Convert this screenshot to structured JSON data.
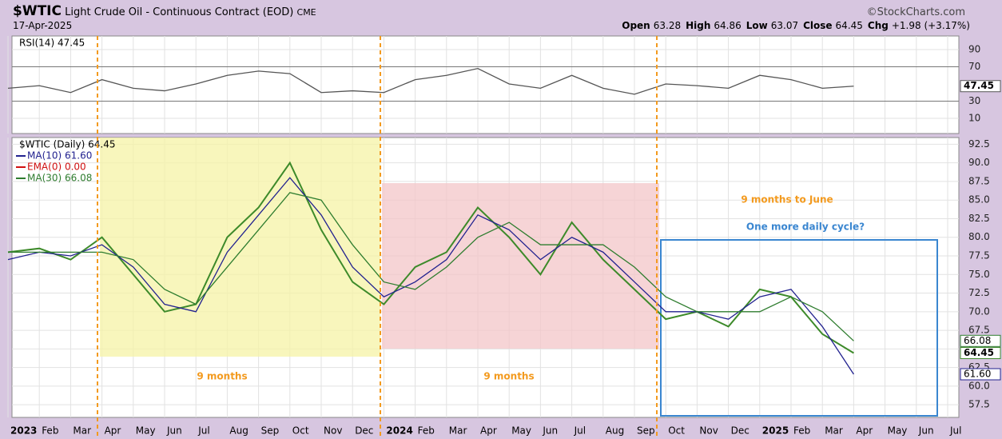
{
  "header": {
    "symbol": "$WTIC",
    "name": "Light Crude Oil - Continuous Contract (EOD)",
    "exchange": "CME",
    "source": "©StockCharts.com",
    "date": "17-Apr-2025",
    "quote": [
      {
        "label": "Open",
        "value": "63.28"
      },
      {
        "label": "High",
        "value": "64.86"
      },
      {
        "label": "Low",
        "value": "63.07"
      },
      {
        "label": "Close",
        "value": "64.45"
      },
      {
        "label": "Chg",
        "value": "+1.98 (+3.17%)"
      }
    ]
  },
  "chart_data": [
    {
      "type": "line",
      "title": "RSI(14) 47.45",
      "ylim": [
        -7.7,
        105.8
      ],
      "yticks": [
        10,
        30,
        70,
        90
      ],
      "grid": true,
      "series": [
        {
          "name": "RSI(14)",
          "color": "#555555",
          "axis_label": "47.45",
          "values": [
            45,
            48,
            40,
            55,
            45,
            42,
            50,
            60,
            65,
            62,
            40,
            42,
            40,
            55,
            60,
            68,
            50,
            45,
            60,
            45,
            38,
            50,
            48,
            45,
            60,
            55,
            45,
            47.45,
            null,
            null,
            null
          ]
        }
      ]
    },
    {
      "type": "line",
      "title": "$WTIC (Daily) 64.45",
      "ylim": [
        55.8,
        93.4
      ],
      "grid": true,
      "categories": [
        "2023",
        "Feb",
        "Mar",
        "Apr",
        "May",
        "Jun",
        "Jul",
        "Aug",
        "Sep",
        "Oct",
        "Nov",
        "Dec",
        "2024",
        "Feb",
        "Mar",
        "Apr",
        "May",
        "Jun",
        "Jul",
        "Aug",
        "Sep",
        "Oct",
        "Nov",
        "Dec",
        "2025",
        "Feb",
        "Mar",
        "Apr",
        "May",
        "Jun",
        "Jul"
      ],
      "yticks": [
        {
          "value": 57.5,
          "label": "57.5"
        },
        {
          "value": 60,
          "label": "60.0"
        },
        {
          "value": 62.5,
          "label": "62.5"
        },
        {
          "value": 65,
          "label": "65.0"
        },
        {
          "value": 67.5,
          "label": "67.5"
        },
        {
          "value": 70,
          "label": "70.0"
        },
        {
          "value": 72.5,
          "label": "72.5"
        },
        {
          "value": 75,
          "label": "75.0"
        },
        {
          "value": 77.5,
          "label": "77.5"
        },
        {
          "value": 80,
          "label": "80.0"
        },
        {
          "value": 82.5,
          "label": "82.5"
        },
        {
          "value": 85,
          "label": "85.0"
        },
        {
          "value": 87.5,
          "label": "87.5"
        },
        {
          "value": 90,
          "label": "90.0"
        },
        {
          "value": 92.5,
          "label": "92.5"
        }
      ],
      "series": [
        {
          "name": "$WTIC (Daily) 64.45",
          "color": "#3d8a2a",
          "axis_label": "64.45",
          "values": [
            78,
            78.5,
            77,
            80,
            75,
            70,
            71,
            80,
            84,
            90,
            81,
            74,
            71,
            76,
            78,
            84,
            80,
            75,
            82,
            77,
            73,
            69,
            70,
            68,
            73,
            72,
            67,
            64.45,
            null,
            null,
            null
          ]
        },
        {
          "name": "MA(10) 61.60",
          "color": "#22228f",
          "axis_label": "61.60",
          "values": [
            77,
            78,
            77.5,
            79,
            76,
            71,
            70,
            78,
            83,
            88,
            83,
            76,
            72,
            74,
            77,
            83,
            81,
            77,
            80,
            78,
            74,
            70,
            70,
            69,
            72,
            73,
            68,
            61.6,
            null,
            null,
            null
          ]
        },
        {
          "name": "EMA(0) 0.00",
          "color": "#d01010",
          "values": [
            null,
            null,
            null,
            null,
            null,
            null,
            null,
            null,
            null,
            null,
            null,
            null,
            null,
            null,
            null,
            null,
            null,
            null,
            null,
            null,
            null,
            null,
            null,
            null,
            null,
            null,
            null,
            null,
            null,
            null,
            null
          ]
        },
        {
          "name": "MA(30) 66.08",
          "color": "#2f7d2f",
          "axis_label": "66.08",
          "values": [
            78,
            78,
            78,
            78,
            77,
            73,
            71,
            76,
            81,
            86,
            85,
            79,
            74,
            73,
            76,
            80,
            82,
            79,
            79,
            79,
            76,
            72,
            70,
            70,
            70,
            72,
            70,
            66.08,
            null,
            null,
            null
          ]
        }
      ],
      "annotations": [
        "9 months",
        "9 months",
        "9 months to June",
        "One more daily cycle?"
      ]
    }
  ]
}
